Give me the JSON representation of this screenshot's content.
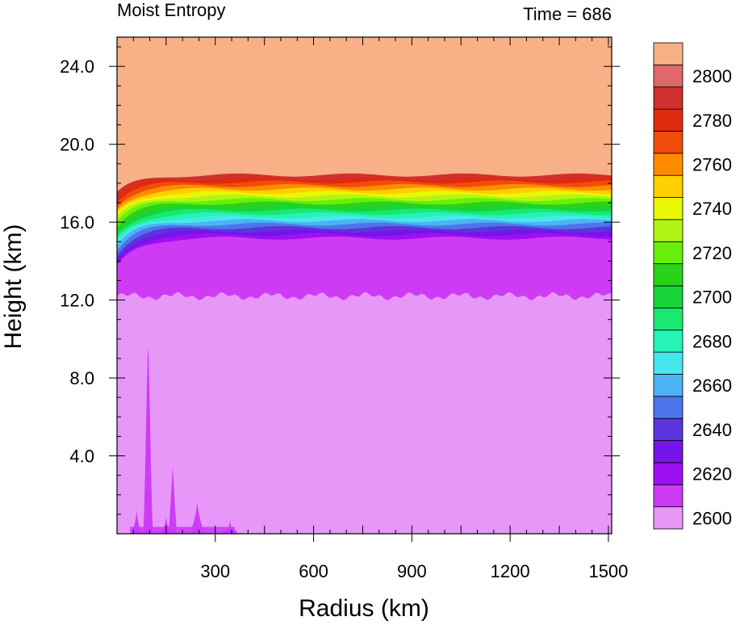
{
  "chart_data": {
    "type": "heatmap",
    "variant": "filled-contour",
    "title_left": "Moist Entropy",
    "title_right": "Time = 686",
    "xlabel": "Radius (km)",
    "ylabel": "Height (km)",
    "xlim": [
      0,
      1510
    ],
    "ylim": [
      0,
      25.5
    ],
    "xticks": [
      300,
      600,
      900,
      1200,
      1500
    ],
    "xtick_labels": [
      "300",
      "600",
      "900",
      "1200",
      "1500"
    ],
    "yticks": [
      4,
      8,
      12,
      16,
      20,
      24
    ],
    "ytick_labels": [
      "4.0",
      "8.0",
      "12.0",
      "16.0",
      "20.0",
      "24.0"
    ],
    "colorbar": {
      "levels": [
        2600,
        2610,
        2620,
        2630,
        2640,
        2650,
        2660,
        2670,
        2680,
        2690,
        2700,
        2710,
        2720,
        2730,
        2740,
        2750,
        2760,
        2770,
        2780,
        2790,
        2800
      ],
      "labels": [
        "2600",
        "2620",
        "2640",
        "2660",
        "2680",
        "2700",
        "2720",
        "2740",
        "2760",
        "2780",
        "2800"
      ],
      "colors": [
        "#e697f8",
        "#cd3cf4",
        "#9e0ff4",
        "#7514e8",
        "#5a34dc",
        "#4e74ec",
        "#4cb4f4",
        "#46e8ec",
        "#27f2b8",
        "#1ae870",
        "#18d438",
        "#2ad21a",
        "#68f00c",
        "#b2f414",
        "#e8f804",
        "#ffcf00",
        "#ff8c00",
        "#f04d08",
        "#de2a0e",
        "#d03030",
        "#e06868",
        "#f8b086"
      ]
    },
    "field": {
      "description": "moist entropy vs radius and height",
      "surface_value_range": [
        2600,
        2610
      ],
      "uniform_below_km": 12.2,
      "layer_12_to_15km": 2610,
      "gradient_layer_km": [
        15.0,
        18.6
      ],
      "gradient_layer_values": [
        2620,
        2790
      ],
      "above_km": 18.8,
      "above_value": ">2800",
      "tower_near_radius_km": 100,
      "tower_max_height_km": 9.6
    }
  }
}
